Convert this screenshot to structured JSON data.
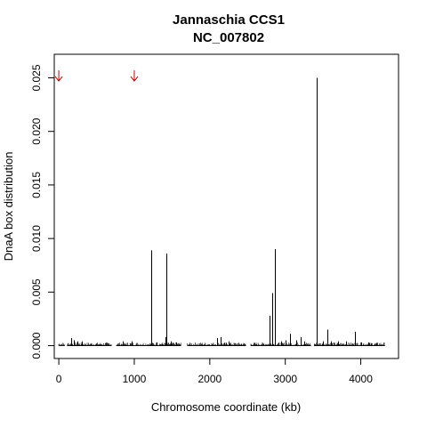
{
  "chart_data": {
    "type": "bar",
    "title": "Jannaschia CCS1",
    "subtitle": "NC_007802",
    "xlabel": "Chromosome coordinate (kb)",
    "ylabel": "DnaA box distribution",
    "xlim": [
      -60,
      4500
    ],
    "ylim": [
      -0.0012,
      0.0272
    ],
    "xticks": [
      0,
      1000,
      2000,
      3000,
      4000
    ],
    "xtick_labels": [
      "0",
      "1000",
      "2000",
      "3000",
      "4000"
    ],
    "yticks": [
      0.0,
      0.005,
      0.01,
      0.015,
      0.02,
      0.025
    ],
    "ytick_labels": [
      "0.000",
      "0.005",
      "0.010",
      "0.015",
      "0.020",
      "0.025"
    ],
    "grid": false,
    "arrows": {
      "color": "#cc0000",
      "x": [
        0,
        1000
      ],
      "y": 0.0257
    },
    "spikes": [
      {
        "x": 160,
        "y": 0.0007
      },
      {
        "x": 200,
        "y": 0.0005
      },
      {
        "x": 250,
        "y": 0.0004
      },
      {
        "x": 300,
        "y": 0.0004
      },
      {
        "x": 850,
        "y": 0.0004
      },
      {
        "x": 960,
        "y": 0.0004
      },
      {
        "x": 1230,
        "y": 0.0089
      },
      {
        "x": 1300,
        "y": 0.0003
      },
      {
        "x": 1410,
        "y": 0.0008
      },
      {
        "x": 1425,
        "y": 0.0086
      },
      {
        "x": 1480,
        "y": 0.0004
      },
      {
        "x": 1550,
        "y": 0.0003
      },
      {
        "x": 2100,
        "y": 0.0007
      },
      {
        "x": 2140,
        "y": 0.0008
      },
      {
        "x": 2250,
        "y": 0.0004
      },
      {
        "x": 2790,
        "y": 0.0028
      },
      {
        "x": 2830,
        "y": 0.0049
      },
      {
        "x": 2860,
        "y": 0.009
      },
      {
        "x": 2950,
        "y": 0.0004
      },
      {
        "x": 3000,
        "y": 0.0005
      },
      {
        "x": 3060,
        "y": 0.0011
      },
      {
        "x": 3150,
        "y": 0.0005
      },
      {
        "x": 3200,
        "y": 0.0008
      },
      {
        "x": 3250,
        "y": 0.0004
      },
      {
        "x": 3420,
        "y": 0.025
      },
      {
        "x": 3500,
        "y": 0.0004
      },
      {
        "x": 3560,
        "y": 0.0015
      },
      {
        "x": 3600,
        "y": 0.0004
      },
      {
        "x": 3700,
        "y": 0.0004
      },
      {
        "x": 3800,
        "y": 0.0004
      },
      {
        "x": 3920,
        "y": 0.0013
      },
      {
        "x": 4000,
        "y": 0.0003
      },
      {
        "x": 4100,
        "y": 0.0003
      },
      {
        "x": 4200,
        "y": 0.0002
      }
    ],
    "small_spike_pattern": {
      "x_start": 0,
      "x_end": 4320,
      "step": 8,
      "max": 0.0003,
      "gap_ranges": [
        [
          80,
          110
        ],
        [
          700,
          760
        ],
        [
          1620,
          1700
        ],
        [
          2480,
          2540
        ],
        [
          3340,
          3380
        ]
      ]
    }
  }
}
